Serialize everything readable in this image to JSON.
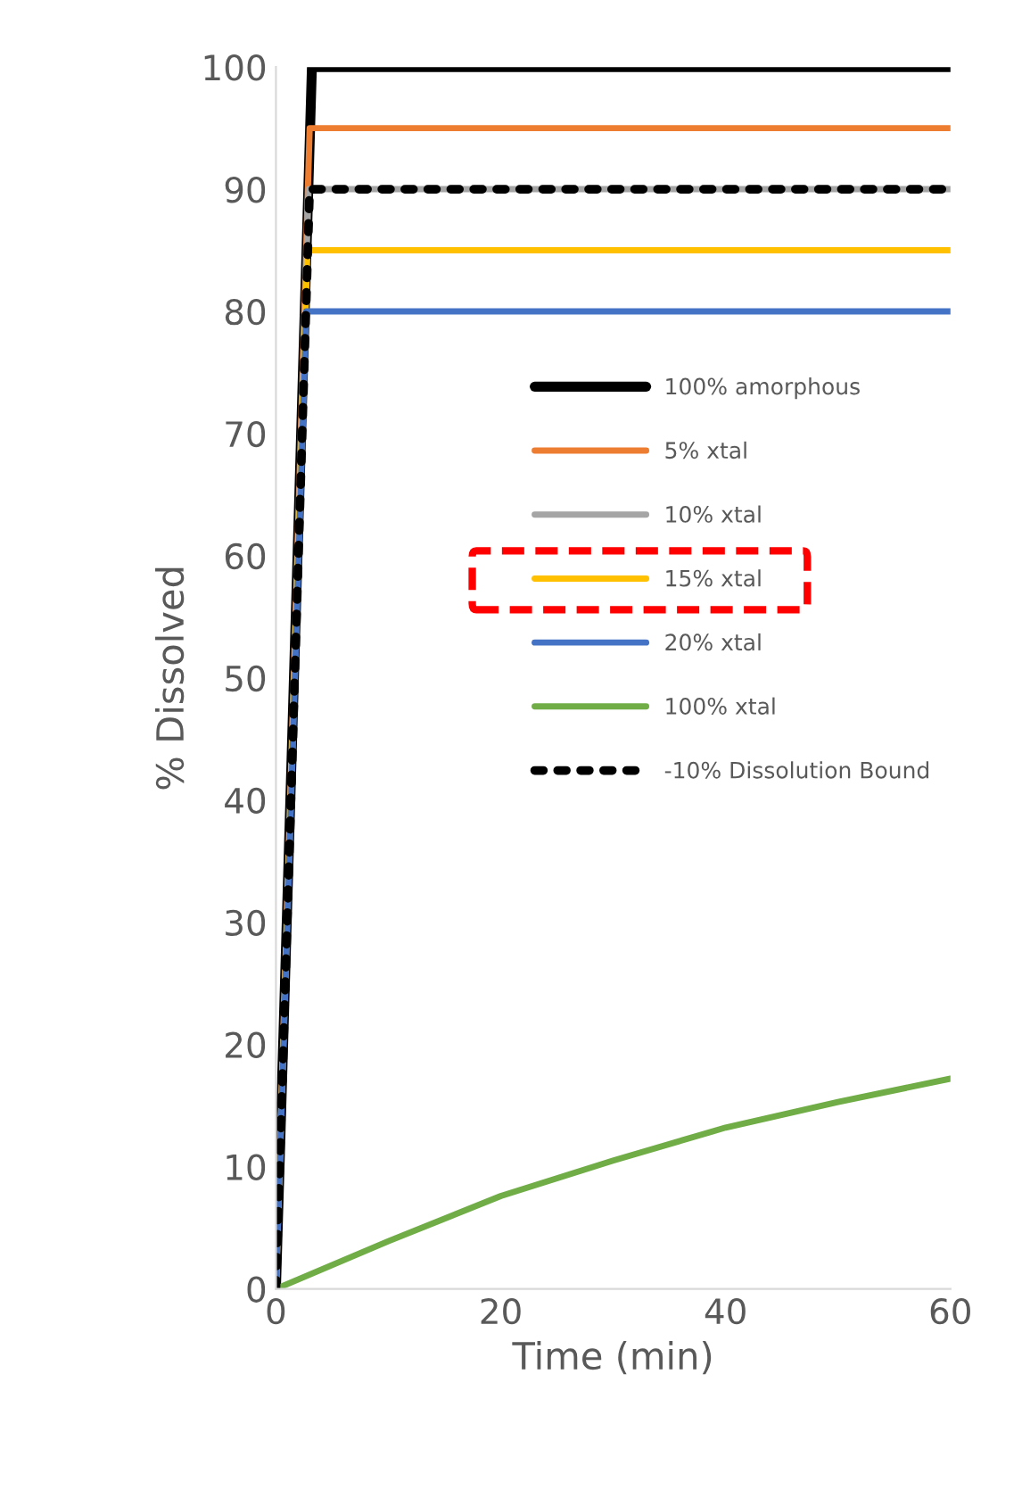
{
  "chart_data": {
    "type": "line",
    "xlabel": "Time (min)",
    "ylabel": "% Dissolved",
    "xlim": [
      0,
      60
    ],
    "xticks": [
      0,
      20,
      40,
      60
    ],
    "ylim": [
      0,
      100
    ],
    "yticks": [
      0,
      10,
      20,
      30,
      40,
      50,
      60,
      70,
      80,
      90,
      100
    ],
    "grid": false,
    "legend": "right",
    "marker": "none",
    "line_style": "solid",
    "series": [
      {
        "name": "100% amorphous",
        "color": "#000000",
        "x": [
          0,
          3.2,
          60
        ],
        "values": [
          0,
          100,
          100
        ]
      },
      {
        "name": "5% xtal",
        "color": "#ed7d31",
        "x": [
          0,
          3.0,
          60
        ],
        "values": [
          0,
          95,
          95
        ]
      },
      {
        "name": "10% xtal",
        "color": "#a5a5a5",
        "x": [
          0,
          2.9,
          60
        ],
        "values": [
          0,
          90,
          90
        ]
      },
      {
        "name": "15% xtal",
        "color": "#ffc000",
        "x": [
          0,
          2.8,
          60
        ],
        "values": [
          0,
          85,
          85
        ]
      },
      {
        "name": "20% xtal",
        "color": "#4472c4",
        "x": [
          0,
          2.7,
          60
        ],
        "values": [
          0,
          80,
          80
        ]
      },
      {
        "name": "100% xtal",
        "color": "#70ad47",
        "x": [
          0,
          10,
          20,
          30,
          40,
          50,
          60
        ],
        "values": [
          0,
          3.9,
          7.6,
          10.5,
          13.2,
          15.3,
          17.2
        ]
      },
      {
        "name": "-10% Dissolution Bound",
        "color": "#000000",
        "line_style": "dotted",
        "x": [
          0,
          3.0,
          60
        ],
        "values": [
          0,
          90,
          90
        ]
      }
    ]
  }
}
